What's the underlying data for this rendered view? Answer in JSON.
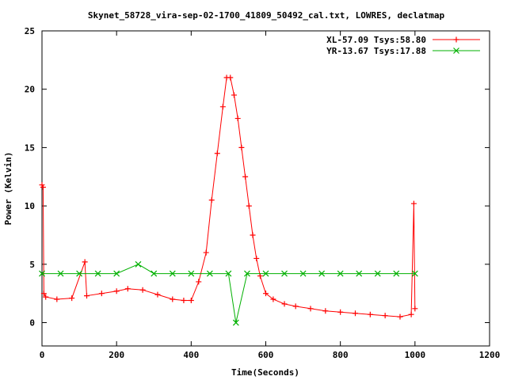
{
  "chart_data": {
    "type": "line",
    "title": "Skynet_58728_vira-sep-02-1700_41809_50492_cal.txt, LOWRES, declatmap",
    "xlabel": "Time(Seconds)",
    "ylabel": "Power (Kelvin)",
    "xlim": [
      0,
      1200
    ],
    "ylim": [
      -2,
      25
    ],
    "xticks": [
      0,
      200,
      400,
      600,
      800,
      1000,
      1200
    ],
    "yticks": [
      0,
      5,
      10,
      15,
      20,
      25
    ],
    "grid": false,
    "legend_position": "top-right",
    "series": [
      {
        "name": "XL-57.09 Tsys:58.80",
        "color": "#ff0000",
        "marker": "plus",
        "x": [
          0,
          3,
          5,
          10,
          40,
          80,
          115,
          120,
          160,
          200,
          230,
          270,
          310,
          350,
          380,
          400,
          420,
          440,
          455,
          470,
          485,
          495,
          505,
          515,
          525,
          535,
          545,
          555,
          565,
          575,
          585,
          600,
          620,
          650,
          680,
          720,
          760,
          800,
          840,
          880,
          920,
          960,
          990,
          997,
          1000
        ],
        "y": [
          11.8,
          11.6,
          2.5,
          2.2,
          2.0,
          2.1,
          5.2,
          2.3,
          2.5,
          2.7,
          2.9,
          2.8,
          2.4,
          2.0,
          1.9,
          1.9,
          3.5,
          6.0,
          10.5,
          14.5,
          18.5,
          21.0,
          21.0,
          19.5,
          17.5,
          15.0,
          12.5,
          10.0,
          7.5,
          5.5,
          4.0,
          2.5,
          2.0,
          1.6,
          1.4,
          1.2,
          1.0,
          0.9,
          0.8,
          0.7,
          0.6,
          0.5,
          0.7,
          10.2,
          1.2
        ]
      },
      {
        "name": "YR-13.67 Tsys:17.88",
        "color": "#00b000",
        "marker": "cross",
        "x": [
          0,
          50,
          100,
          150,
          200,
          258,
          300,
          350,
          400,
          450,
          500,
          520,
          550,
          600,
          650,
          700,
          750,
          800,
          850,
          900,
          950,
          1000
        ],
        "y": [
          4.2,
          4.2,
          4.2,
          4.2,
          4.2,
          5.0,
          4.2,
          4.2,
          4.2,
          4.2,
          4.2,
          0.0,
          4.2,
          4.2,
          4.2,
          4.2,
          4.2,
          4.2,
          4.2,
          4.2,
          4.2,
          4.2
        ]
      }
    ]
  }
}
